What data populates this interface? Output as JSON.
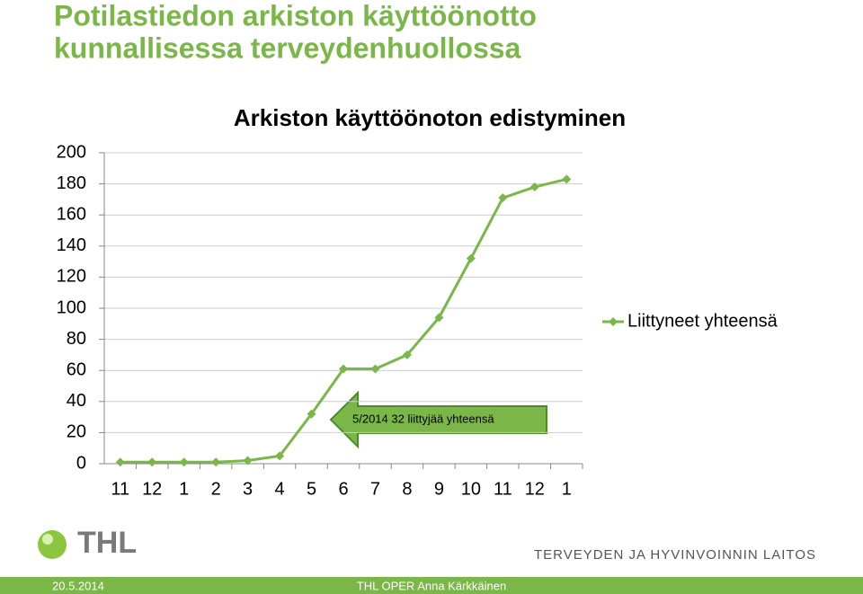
{
  "slide_title": [
    "Potilastiedon arkiston käyttöönotto",
    "kunnallisessa terveydenhuollossa"
  ],
  "chart_data": {
    "type": "line",
    "title": "Arkiston käyttöönoton edistyminen",
    "categories": [
      "11",
      "12",
      "1",
      "2",
      "3",
      "4",
      "5",
      "6",
      "7",
      "8",
      "9",
      "10",
      "11",
      "12",
      "1"
    ],
    "series": [
      {
        "name": "Liittyneet yhteensä",
        "color": "#7ab648",
        "values": [
          1,
          1,
          1,
          1,
          2,
          5,
          32,
          61,
          61,
          70,
          94,
          132,
          171,
          178,
          183
        ]
      }
    ],
    "ylim": [
      0,
      200
    ],
    "yticks": [
      0,
      20,
      40,
      60,
      80,
      100,
      120,
      140,
      160,
      180,
      200
    ],
    "grid": true,
    "legend": "right",
    "annotation": "5/2014  32 liittyjää yhteensä"
  },
  "logo": {
    "text": "THL",
    "org": "TERVEYDEN JA HYVINVOINNIN LAITOS"
  },
  "footer": {
    "date": "20.5.2014",
    "author": "THL OPER Anna Kärkkäinen"
  }
}
